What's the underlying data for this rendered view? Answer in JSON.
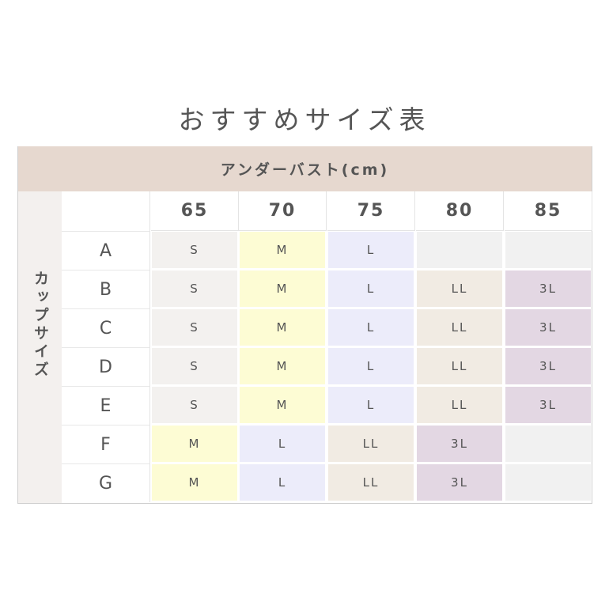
{
  "title": "おすすめサイズ表",
  "header": "アンダーバスト(cm)",
  "side_label": "カップサイズ",
  "columns": [
    "65",
    "70",
    "75",
    "80",
    "85"
  ],
  "rows": [
    {
      "cup": "A",
      "sizes": [
        "S",
        "M",
        "L",
        "",
        ""
      ]
    },
    {
      "cup": "B",
      "sizes": [
        "S",
        "M",
        "L",
        "LL",
        "3L"
      ]
    },
    {
      "cup": "C",
      "sizes": [
        "S",
        "M",
        "L",
        "LL",
        "3L"
      ]
    },
    {
      "cup": "D",
      "sizes": [
        "S",
        "M",
        "L",
        "LL",
        "3L"
      ]
    },
    {
      "cup": "E",
      "sizes": [
        "S",
        "M",
        "L",
        "LL",
        "3L"
      ]
    },
    {
      "cup": "F",
      "sizes": [
        "M",
        "L",
        "LL",
        "3L",
        ""
      ]
    },
    {
      "cup": "G",
      "sizes": [
        "M",
        "L",
        "LL",
        "3L",
        ""
      ]
    }
  ],
  "colors": {
    "S": "#f3f1ef",
    "M": "#fdfcd4",
    "L": "#ececfa",
    "LL": "#f1ebe3",
    "3L": "#e3d7e3",
    "empty": "#f1f1f1",
    "header": "#e6d8cf"
  }
}
